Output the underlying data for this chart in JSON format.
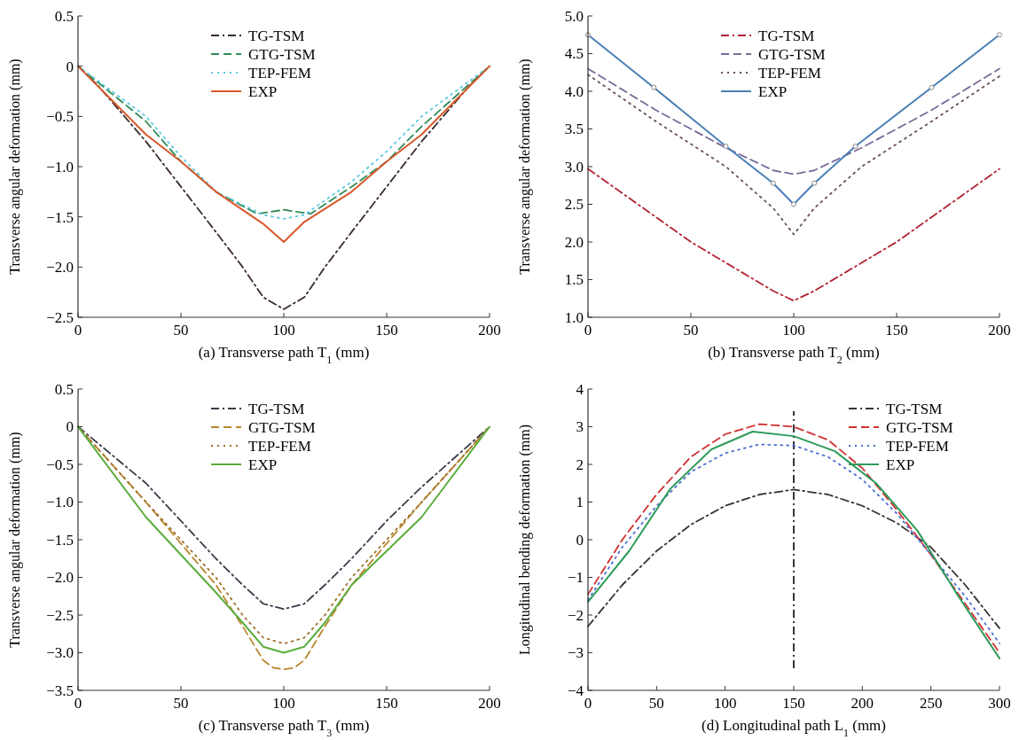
{
  "chart_data": [
    {
      "type": "line",
      "xlabel": "(a) Transverse path T$_{1}$ (mm)",
      "ylabel": "Transverse angular deformation (mm)",
      "xlim": [
        0,
        200
      ],
      "xticks": [
        0,
        50,
        100,
        150,
        200
      ],
      "ylim": [
        -2.5,
        0.5
      ],
      "yticks": [
        {
          "value": -2.5,
          "label": "−2.5"
        },
        {
          "value": -2,
          "label": "−2.0"
        },
        {
          "value": -1.5,
          "label": "−1.5"
        },
        {
          "value": -1,
          "label": "−1.0"
        },
        {
          "value": -0.5,
          "label": "−0.5"
        },
        0,
        0.5
      ],
      "legend": "top",
      "grid": false,
      "series": [
        {
          "name": "TG-TSM",
          "color": "#3b2a2a",
          "line_style": "dashdot",
          "x": [
            0,
            10,
            33,
            50,
            67,
            80,
            90,
            100,
            110,
            120,
            133,
            150,
            167,
            190,
            200
          ],
          "values": [
            0,
            -0.2,
            -0.75,
            -1.2,
            -1.65,
            -2.0,
            -2.3,
            -2.42,
            -2.3,
            -2.0,
            -1.65,
            -1.2,
            -0.75,
            -0.2,
            0
          ]
        },
        {
          "name": "GTG-TSM",
          "color": "#2e8b57",
          "line_style": "dashed",
          "x": [
            0,
            33,
            50,
            67,
            87,
            100,
            113,
            133,
            150,
            167,
            200
          ],
          "values": [
            0,
            -0.55,
            -0.95,
            -1.25,
            -1.47,
            -1.43,
            -1.47,
            -1.2,
            -0.95,
            -0.6,
            0
          ]
        },
        {
          "name": "TEP-FEM",
          "color": "#5bc8e0",
          "line_style": "dotted",
          "x": [
            0,
            33,
            50,
            67,
            90,
            100,
            110,
            133,
            150,
            167,
            200
          ],
          "values": [
            0,
            -0.5,
            -0.9,
            -1.25,
            -1.48,
            -1.52,
            -1.48,
            -1.15,
            -0.85,
            -0.5,
            0
          ]
        },
        {
          "name": "EXP",
          "color": "#d9572a",
          "line_style": "solid",
          "x": [
            0,
            33,
            50,
            67,
            90,
            100,
            110,
            133,
            150,
            167,
            200
          ],
          "values": [
            0,
            -0.68,
            -0.95,
            -1.25,
            -1.57,
            -1.75,
            -1.55,
            -1.25,
            -0.95,
            -0.68,
            0
          ]
        }
      ]
    },
    {
      "type": "line",
      "xlabel": "(b) Transverse path T$_{2}$ (mm)",
      "ylabel": "Transverse angular deformation (mm)",
      "xlim": [
        0,
        200
      ],
      "xticks": [
        0,
        50,
        100,
        150,
        200
      ],
      "ylim": [
        1,
        5
      ],
      "yticks": [
        {
          "value": 1,
          "label": "1.0"
        },
        1.5,
        {
          "value": 2,
          "label": "2.0"
        },
        2.5,
        {
          "value": 3,
          "label": "3.0"
        },
        3.5,
        {
          "value": 4,
          "label": "4.0"
        },
        4.5,
        {
          "value": 5,
          "label": "5.0"
        }
      ],
      "legend": "top",
      "grid": false,
      "series": [
        {
          "name": "TG-TSM",
          "color": "#b22234",
          "line_style": "dashdot",
          "x": [
            0,
            50,
            90,
            100,
            110,
            150,
            200
          ],
          "values": [
            2.97,
            2.0,
            1.35,
            1.22,
            1.35,
            2.0,
            2.97
          ]
        },
        {
          "name": "GTG-TSM",
          "color": "#7a6a9a",
          "line_style": "dashed",
          "x": [
            0,
            33,
            67,
            90,
            100,
            110,
            133,
            167,
            200
          ],
          "values": [
            4.3,
            3.75,
            3.25,
            2.95,
            2.9,
            2.95,
            3.25,
            3.75,
            4.3
          ]
        },
        {
          "name": "TEP-FEM",
          "color": "#6b4f4f",
          "line_style": "dotted",
          "x": [
            0,
            33,
            67,
            90,
            100,
            110,
            133,
            167,
            200
          ],
          "values": [
            4.22,
            3.6,
            3.0,
            2.45,
            2.1,
            2.45,
            3.0,
            3.6,
            4.2
          ]
        },
        {
          "name": "EXP",
          "color": "#4a7fb5",
          "line_style": "solid",
          "marker": "circle",
          "x": [
            0,
            32,
            67,
            90,
            100,
            110,
            130,
            167,
            200
          ],
          "values": [
            4.75,
            4.05,
            3.27,
            2.78,
            2.5,
            2.78,
            3.27,
            4.05,
            4.75
          ]
        }
      ]
    },
    {
      "type": "line",
      "xlabel": "(c) Transverse path T$_{3}$ (mm)",
      "ylabel": "Transverse angular deformation (mm)",
      "xlim": [
        0,
        200
      ],
      "xticks": [
        0,
        50,
        100,
        150,
        200
      ],
      "ylim": [
        -3.5,
        0.5
      ],
      "yticks": [
        {
          "value": -3.5,
          "label": "−3.5"
        },
        {
          "value": -3,
          "label": "−3.0"
        },
        {
          "value": -2.5,
          "label": "−2.5"
        },
        {
          "value": -2,
          "label": "−2.0"
        },
        {
          "value": -1.5,
          "label": "−1.5"
        },
        {
          "value": -1,
          "label": "−1.0"
        },
        {
          "value": -0.5,
          "label": "−0.5"
        },
        0,
        0.5
      ],
      "legend": "top",
      "grid": false,
      "series": [
        {
          "name": "TG-TSM",
          "color": "#3a3a4a",
          "line_style": "dashdot",
          "x": [
            0,
            33,
            50,
            67,
            80,
            90,
            100,
            110,
            120,
            133,
            150,
            167,
            200
          ],
          "values": [
            0,
            -0.75,
            -1.25,
            -1.75,
            -2.1,
            -2.35,
            -2.42,
            -2.35,
            -2.1,
            -1.75,
            -1.25,
            -0.8,
            0
          ]
        },
        {
          "name": "GTG-TSM",
          "color": "#b8862b",
          "line_style": "dashed",
          "x": [
            0,
            33,
            50,
            67,
            80,
            90,
            95,
            100,
            105,
            110,
            120,
            133,
            150,
            167,
            200
          ],
          "values": [
            0,
            -1.0,
            -1.55,
            -2.1,
            -2.65,
            -3.1,
            -3.2,
            -3.22,
            -3.2,
            -3.1,
            -2.65,
            -2.1,
            -1.55,
            -1.0,
            0
          ]
        },
        {
          "name": "TEP-FEM",
          "color": "#a0702a",
          "line_style": "dotted",
          "x": [
            0,
            33,
            50,
            67,
            80,
            90,
            100,
            110,
            120,
            133,
            150,
            167,
            200
          ],
          "values": [
            0,
            -1.0,
            -1.5,
            -2.0,
            -2.5,
            -2.8,
            -2.88,
            -2.8,
            -2.5,
            -2.0,
            -1.5,
            -1.0,
            0
          ]
        },
        {
          "name": "EXP",
          "color": "#5aad3c",
          "line_style": "solid",
          "x": [
            0,
            33,
            50,
            67,
            80,
            90,
            100,
            110,
            120,
            133,
            150,
            167,
            200
          ],
          "values": [
            0,
            -1.2,
            -1.7,
            -2.2,
            -2.6,
            -2.92,
            -3.0,
            -2.92,
            -2.6,
            -2.1,
            -1.65,
            -1.2,
            0
          ]
        }
      ]
    },
    {
      "type": "line",
      "xlabel": "(d) Longitudinal path L$_{1}$ (mm)",
      "ylabel": "Longitudinal bending deformation (mm)",
      "xlim": [
        0,
        300
      ],
      "xticks": [
        0,
        50,
        100,
        150,
        200,
        250,
        300
      ],
      "ylim": [
        -4,
        4
      ],
      "yticks": [
        {
          "value": -4,
          "label": "−4"
        },
        {
          "value": -3,
          "label": "−3"
        },
        {
          "value": -2,
          "label": "−2"
        },
        {
          "value": -1,
          "label": "−1"
        },
        0,
        1,
        2,
        3,
        4
      ],
      "legend": "top right",
      "grid": false,
      "ref_lines": [
        {
          "axis": "x",
          "value": 150,
          "color": "#222222",
          "line_style": "dashdot"
        }
      ],
      "series": [
        {
          "name": "TG-TSM",
          "color": "#333333",
          "line_style": "dashdot",
          "x": [
            0,
            25,
            50,
            75,
            100,
            125,
            150,
            175,
            200,
            225,
            250,
            275,
            300
          ],
          "values": [
            -2.3,
            -1.2,
            -0.3,
            0.4,
            0.9,
            1.2,
            1.33,
            1.2,
            0.9,
            0.45,
            -0.2,
            -1.2,
            -2.35
          ]
        },
        {
          "name": "GTG-TSM",
          "color": "#d03030",
          "line_style": "dashed",
          "x": [
            0,
            25,
            50,
            75,
            100,
            125,
            150,
            175,
            200,
            225,
            250,
            275,
            300
          ],
          "values": [
            -1.45,
            0.0,
            1.2,
            2.2,
            2.8,
            3.07,
            3.0,
            2.65,
            1.9,
            0.8,
            -0.4,
            -1.7,
            -3.0
          ]
        },
        {
          "name": "TEP-FEM",
          "color": "#4a6fd0",
          "line_style": "dotted",
          "x": [
            0,
            25,
            50,
            75,
            100,
            125,
            150,
            175,
            200,
            225,
            250,
            275,
            300
          ],
          "values": [
            -1.6,
            -0.2,
            0.9,
            1.8,
            2.3,
            2.53,
            2.5,
            2.2,
            1.6,
            0.7,
            -0.4,
            -1.5,
            -2.75
          ]
        },
        {
          "name": "EXP",
          "color": "#2e9b5b",
          "line_style": "solid",
          "x": [
            0,
            30,
            60,
            90,
            120,
            150,
            180,
            210,
            240,
            270,
            300
          ],
          "values": [
            -1.65,
            -0.3,
            1.35,
            2.4,
            2.87,
            2.75,
            2.35,
            1.5,
            0.25,
            -1.5,
            -3.15
          ]
        }
      ]
    }
  ]
}
